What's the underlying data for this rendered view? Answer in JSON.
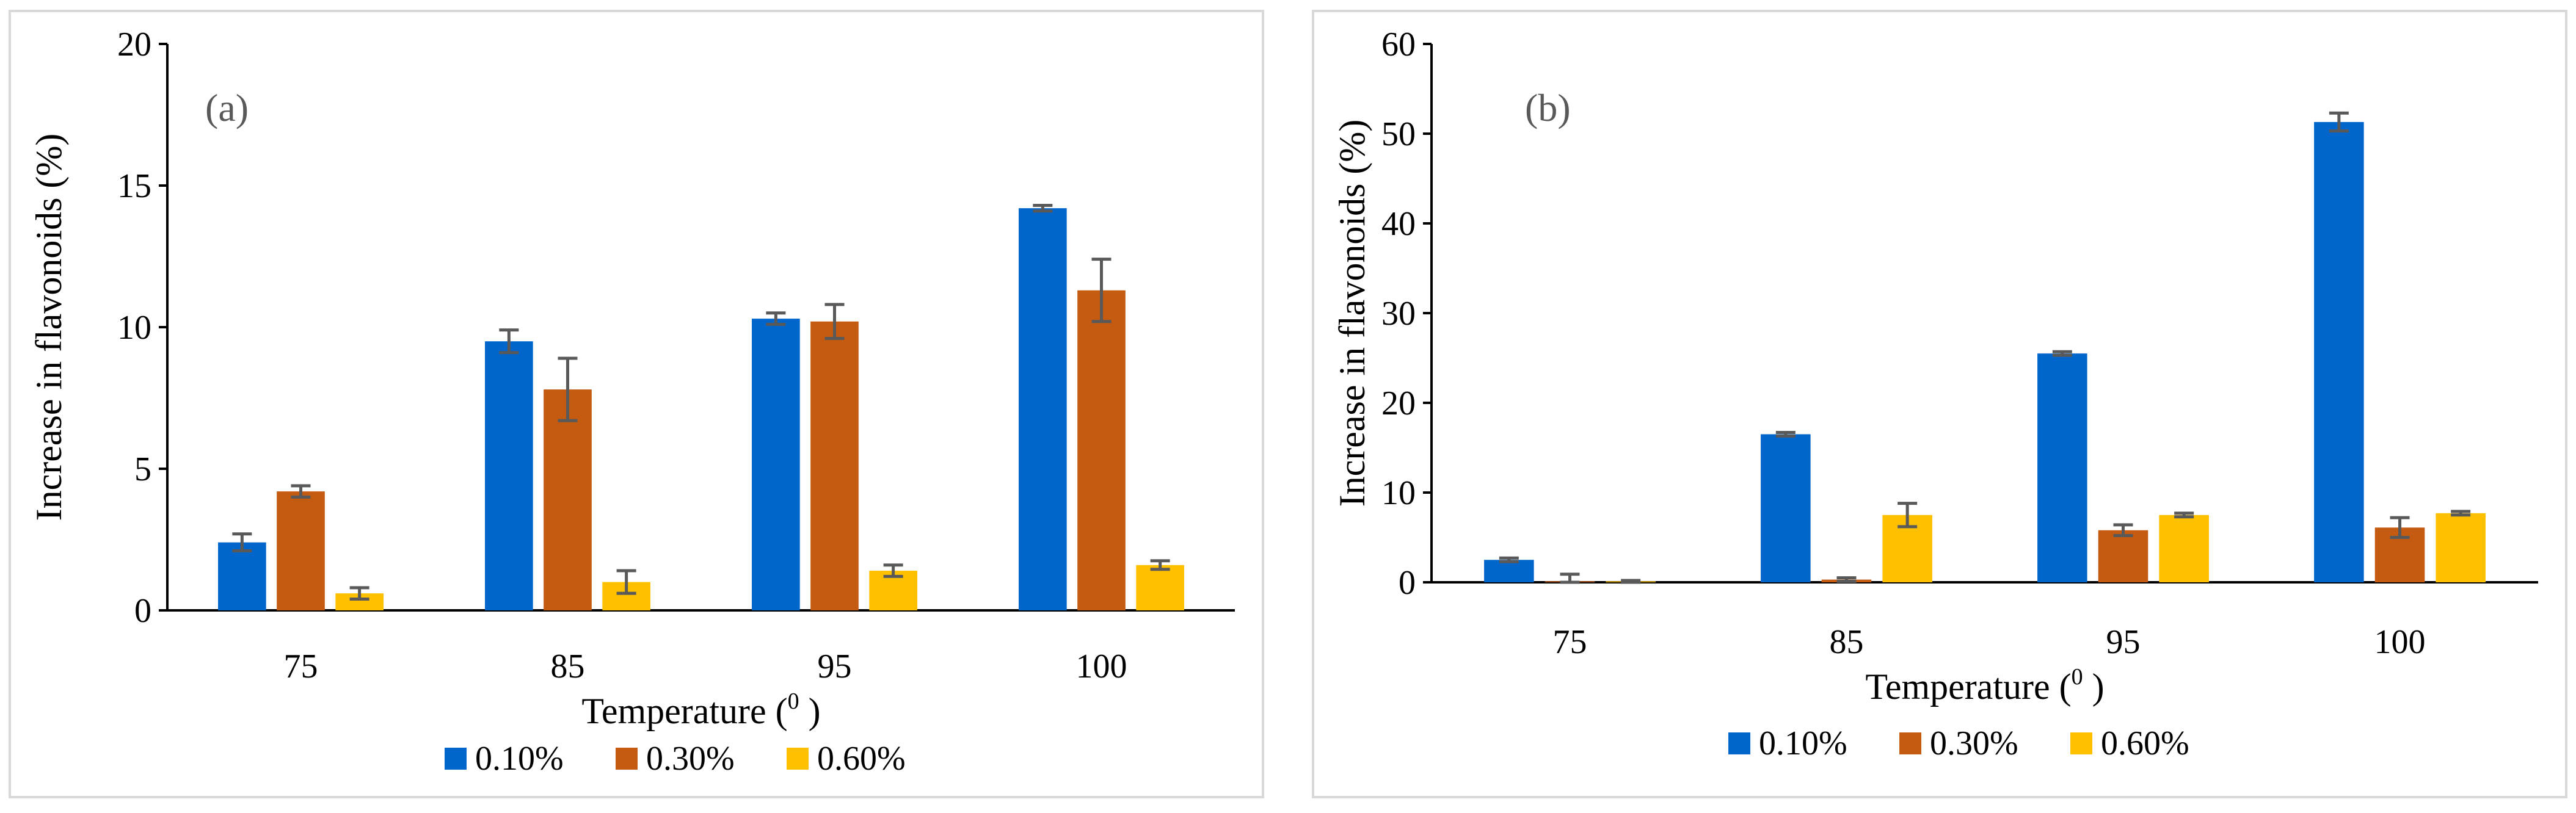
{
  "chart_data": [
    {
      "type": "bar",
      "panel_label": "(a)",
      "xlabel_prefix": "Temperature (",
      "xlabel_sup": "0",
      "xlabel_suffix": ")",
      "ylabel": "Increase in flavonoids (%)",
      "ylim": [
        0,
        20
      ],
      "yticks": [
        0,
        5,
        10,
        15,
        20
      ],
      "categories": [
        "75",
        "85",
        "95",
        "100"
      ],
      "series": [
        {
          "name": "0.10%",
          "color": "#0066cc",
          "values": [
            2.4,
            9.5,
            10.3,
            14.2
          ],
          "errors": [
            0.3,
            0.4,
            0.2,
            0.1
          ]
        },
        {
          "name": "0.30%",
          "color": "#c55a11",
          "values": [
            4.2,
            7.8,
            10.2,
            11.3
          ],
          "errors": [
            0.2,
            1.1,
            0.6,
            1.1
          ]
        },
        {
          "name": "0.60%",
          "color": "#ffc000",
          "values": [
            0.6,
            1.0,
            1.4,
            1.6
          ],
          "errors": [
            0.2,
            0.4,
            0.2,
            0.15
          ]
        }
      ],
      "legend": "bottom"
    },
    {
      "type": "bar",
      "panel_label": "(b)",
      "xlabel_prefix": "Temperature (",
      "xlabel_sup": "0",
      "xlabel_suffix": ")",
      "ylabel": "Increase in flavonoids (%)",
      "ylim": [
        0,
        60
      ],
      "yticks": [
        0,
        10,
        20,
        30,
        40,
        50,
        60
      ],
      "categories": [
        "75",
        "85",
        "95",
        "100"
      ],
      "series": [
        {
          "name": "0.10%",
          "color": "#0066cc",
          "values": [
            2.5,
            16.5,
            25.5,
            51.3
          ],
          "errors": [
            0.2,
            0.2,
            0.2,
            1.0
          ]
        },
        {
          "name": "0.30%",
          "color": "#c55a11",
          "values": [
            0.1,
            0.3,
            5.8,
            6.1
          ],
          "errors": [
            0.8,
            0.2,
            0.6,
            1.1
          ]
        },
        {
          "name": "0.60%",
          "color": "#ffc000",
          "values": [
            0.1,
            7.5,
            7.5,
            7.7
          ],
          "errors": [
            0.1,
            1.3,
            0.2,
            0.2
          ]
        }
      ],
      "legend": "bottom"
    }
  ]
}
